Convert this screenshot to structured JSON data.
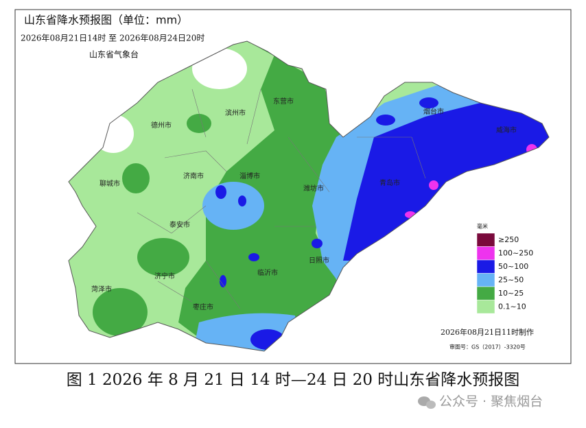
{
  "header": {
    "title": "山东省降水预报图（单位：mm）",
    "time_range": "2026年08月21日14时  至  2026年08月24日20时",
    "issuer": "山东省气象台"
  },
  "cities": [
    "德州市",
    "滨州市",
    "东营市",
    "烟台市",
    "威海市",
    "聊城市",
    "济南市",
    "淄博市",
    "潍坊市",
    "青岛市",
    "泰安市",
    "日照市",
    "济宁市",
    "临沂市",
    "菏泽市",
    "枣庄市"
  ],
  "legend": {
    "unit": "毫米",
    "items": [
      {
        "label": "≥250",
        "color": "#7a0a3c"
      },
      {
        "label": "100~250",
        "color": "#ee33ee"
      },
      {
        "label": "50~100",
        "color": "#1a1ae6"
      },
      {
        "label": "25~50",
        "color": "#66b3f5"
      },
      {
        "label": "10~25",
        "color": "#44aa44"
      },
      {
        "label": "0.1~10",
        "color": "#a8e89a"
      }
    ]
  },
  "footer": {
    "made_time": "2026年08月21日11时制作",
    "review_number": "审图号：GS（2017）-3320号"
  },
  "caption": "图 1 2026 年 8 月 21 日 14 时—24 日 20 时山东省降水预报图",
  "watermark": "公众号 · 聚焦烟台"
}
